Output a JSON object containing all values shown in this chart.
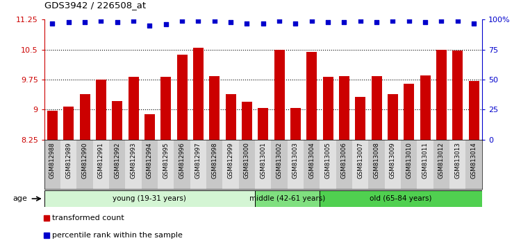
{
  "title": "GDS3942 / 226508_at",
  "samples": [
    "GSM812988",
    "GSM812989",
    "GSM812990",
    "GSM812991",
    "GSM812992",
    "GSM812993",
    "GSM812994",
    "GSM812995",
    "GSM812996",
    "GSM812997",
    "GSM812998",
    "GSM812999",
    "GSM813000",
    "GSM813001",
    "GSM813002",
    "GSM813003",
    "GSM813004",
    "GSM813005",
    "GSM813006",
    "GSM813007",
    "GSM813008",
    "GSM813009",
    "GSM813010",
    "GSM813011",
    "GSM813012",
    "GSM813013",
    "GSM813014"
  ],
  "bar_values": [
    8.98,
    9.07,
    9.38,
    9.75,
    9.22,
    9.82,
    8.88,
    9.82,
    10.38,
    10.55,
    9.84,
    9.38,
    9.2,
    9.05,
    10.5,
    9.05,
    10.45,
    9.82,
    9.84,
    9.32,
    9.83,
    9.38,
    9.65,
    9.85,
    10.5,
    10.47,
    9.72
  ],
  "percentile_values": [
    97,
    98,
    98,
    99,
    98,
    99,
    95,
    96,
    99,
    99,
    99,
    98,
    97,
    97,
    99,
    97,
    99,
    98,
    98,
    99,
    98,
    99,
    99,
    98,
    99,
    99,
    97
  ],
  "bar_color": "#cc0000",
  "dot_color": "#0000cc",
  "ymin": 8.25,
  "ymax": 11.25,
  "yticks": [
    8.25,
    9.0,
    9.75,
    10.5,
    11.25
  ],
  "ytick_labels": [
    "8.25",
    "9",
    "9.75",
    "10.5",
    "11.25"
  ],
  "y2ticks": [
    0,
    25,
    50,
    75,
    100
  ],
  "y2tick_labels": [
    "0",
    "25",
    "50",
    "75",
    "100%"
  ],
  "grid_lines": [
    9.0,
    9.75,
    10.5
  ],
  "groups": [
    {
      "label": "young (19-31 years)",
      "start": 0,
      "end": 13,
      "color": "#d4f5d4"
    },
    {
      "label": "middle (42-61 years)",
      "start": 13,
      "end": 17,
      "color": "#80e080"
    },
    {
      "label": "old (65-84 years)",
      "start": 17,
      "end": 27,
      "color": "#50d050"
    }
  ],
  "col_bg_odd": "#c8c8c8",
  "col_bg_even": "#e0e0e0",
  "legend_items": [
    {
      "label": "transformed count",
      "color": "#cc0000"
    },
    {
      "label": "percentile rank within the sample",
      "color": "#0000cc"
    }
  ]
}
